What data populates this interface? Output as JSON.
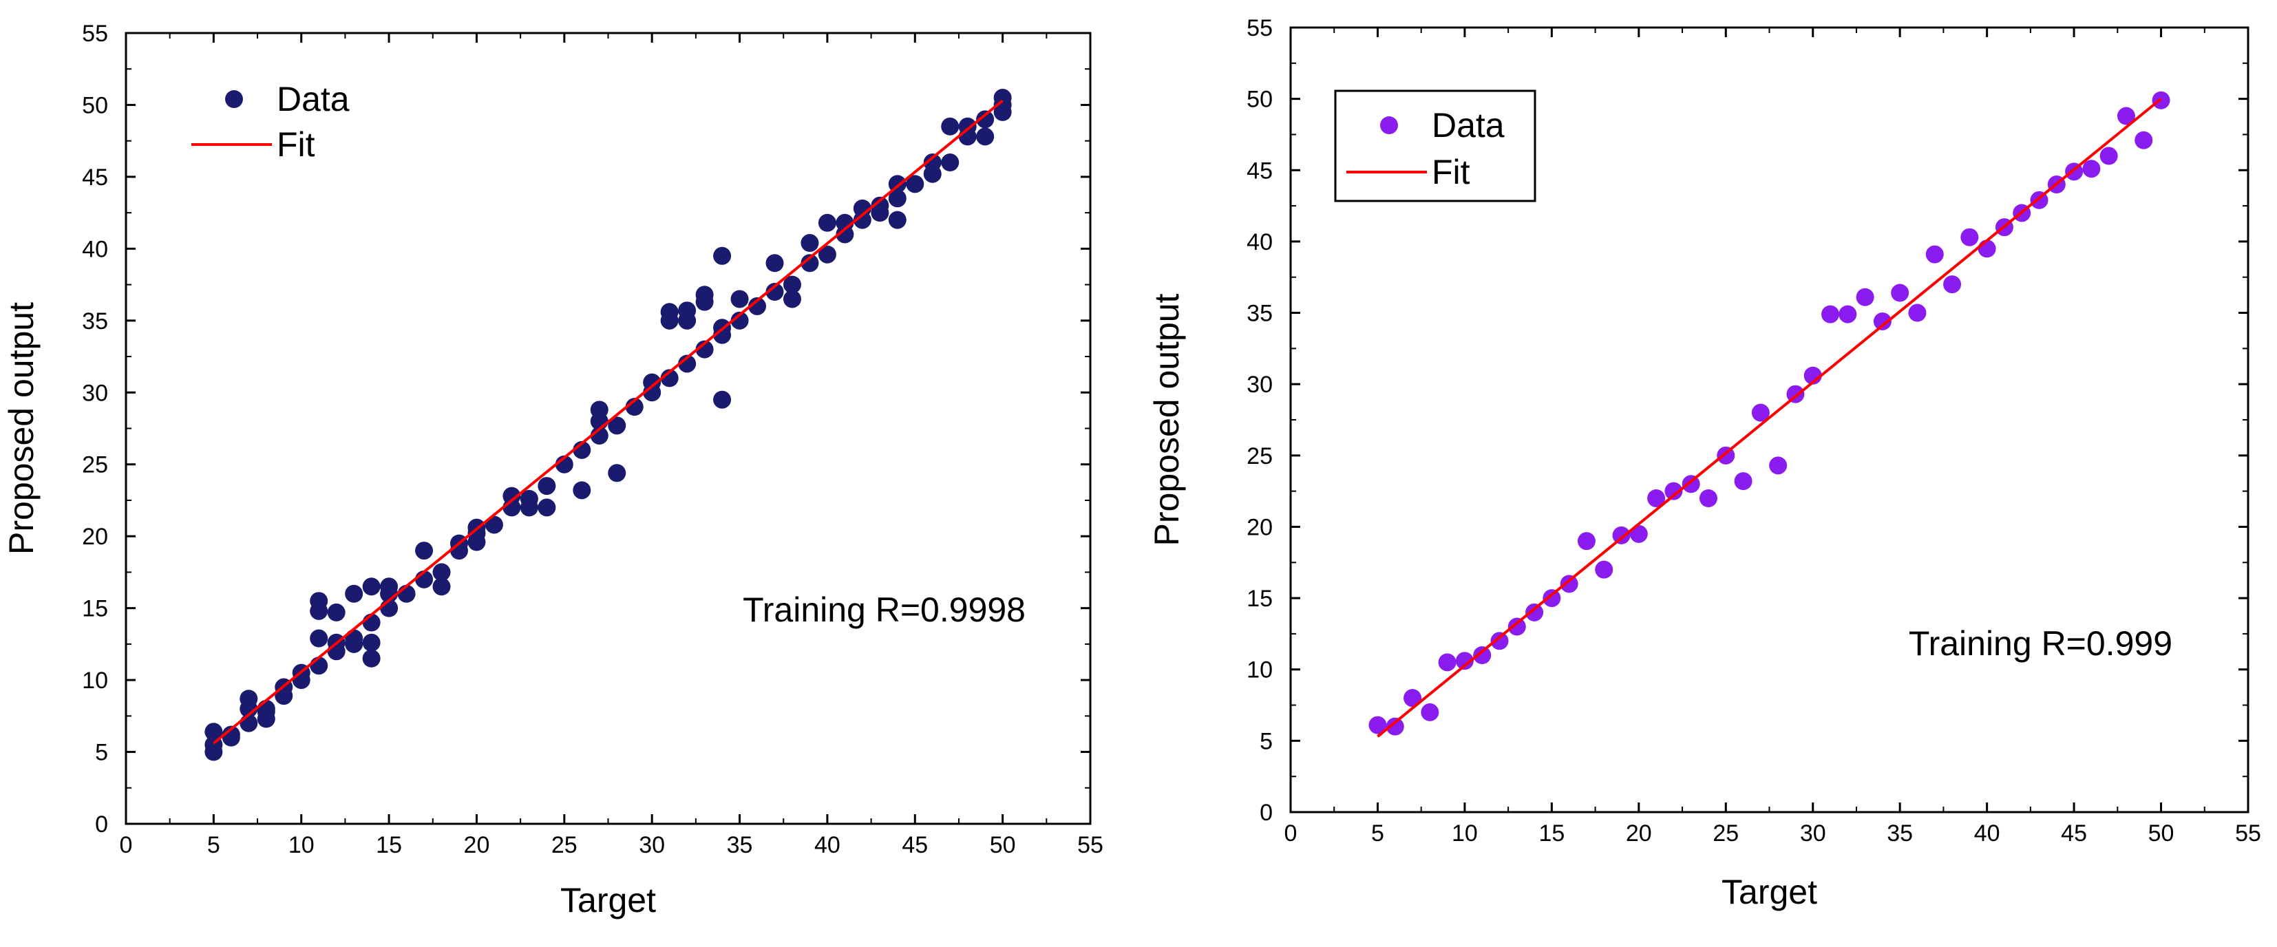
{
  "chart_data": [
    {
      "type": "scatter",
      "panel": "left",
      "xlabel": "Target",
      "ylabel": "Proposed output",
      "xlim": [
        0,
        55
      ],
      "ylim": [
        0,
        55
      ],
      "xticks": [
        0,
        5,
        10,
        15,
        20,
        25,
        30,
        35,
        40,
        45,
        50,
        55
      ],
      "yticks": [
        0,
        5,
        10,
        15,
        20,
        25,
        30,
        35,
        40,
        45,
        50,
        55
      ],
      "legend_position": "top-left",
      "legend_boxed": false,
      "annotation": "Training R=0.9998",
      "series": [
        {
          "name": "Data",
          "kind": "points",
          "color": "#1a1a6e",
          "points": [
            [
              5,
              5.0
            ],
            [
              5,
              5.5
            ],
            [
              5,
              6.4
            ],
            [
              6,
              6.0
            ],
            [
              6,
              6.2
            ],
            [
              7,
              7.0
            ],
            [
              7,
              8.0
            ],
            [
              7,
              8.7
            ],
            [
              8,
              7.3
            ],
            [
              8,
              7.8
            ],
            [
              8,
              8.0
            ],
            [
              9,
              8.9
            ],
            [
              9,
              9.5
            ],
            [
              10,
              10.0
            ],
            [
              10,
              10.5
            ],
            [
              11,
              11.0
            ],
            [
              11,
              12.9
            ],
            [
              11,
              14.8
            ],
            [
              11,
              15.5
            ],
            [
              12,
              12.0
            ],
            [
              12,
              12.6
            ],
            [
              12,
              14.7
            ],
            [
              13,
              12.5
            ],
            [
              13,
              12.9
            ],
            [
              13,
              16.0
            ],
            [
              14,
              11.5
            ],
            [
              14,
              12.6
            ],
            [
              14,
              14.0
            ],
            [
              14,
              16.5
            ],
            [
              15,
              15.0
            ],
            [
              15,
              16.0
            ],
            [
              15,
              16.5
            ],
            [
              16,
              16.0
            ],
            [
              17,
              17.0
            ],
            [
              17,
              19.0
            ],
            [
              18,
              16.5
            ],
            [
              18,
              17.5
            ],
            [
              19,
              19.0
            ],
            [
              19,
              19.5
            ],
            [
              20,
              19.6
            ],
            [
              20,
              20.2
            ],
            [
              20,
              20.6
            ],
            [
              21,
              20.8
            ],
            [
              22,
              22.0
            ],
            [
              22,
              22.8
            ],
            [
              23,
              22.0
            ],
            [
              23,
              22.6
            ],
            [
              24,
              22.0
            ],
            [
              24,
              23.5
            ],
            [
              25,
              25.0
            ],
            [
              26,
              23.2
            ],
            [
              26,
              26.0
            ],
            [
              27,
              27.0
            ],
            [
              27,
              28.0
            ],
            [
              27,
              28.8
            ],
            [
              28,
              24.4
            ],
            [
              28,
              27.7
            ],
            [
              29,
              29.0
            ],
            [
              30,
              30.0
            ],
            [
              30,
              30.7
            ],
            [
              31,
              31.0
            ],
            [
              31,
              35.0
            ],
            [
              31,
              35.6
            ],
            [
              32,
              32.0
            ],
            [
              32,
              35.0
            ],
            [
              32,
              35.7
            ],
            [
              33,
              33.0
            ],
            [
              33,
              36.3
            ],
            [
              33,
              36.8
            ],
            [
              34,
              29.5
            ],
            [
              34,
              34.0
            ],
            [
              34,
              34.5
            ],
            [
              34,
              39.5
            ],
            [
              35,
              35.0
            ],
            [
              35,
              36.5
            ],
            [
              36,
              36.0
            ],
            [
              37,
              37.0
            ],
            [
              37,
              39.0
            ],
            [
              38,
              36.5
            ],
            [
              38,
              37.5
            ],
            [
              39,
              39.0
            ],
            [
              39,
              40.4
            ],
            [
              40,
              39.6
            ],
            [
              40,
              41.8
            ],
            [
              41,
              41.0
            ],
            [
              41,
              41.8
            ],
            [
              42,
              42.0
            ],
            [
              42,
              42.8
            ],
            [
              43,
              42.5
            ],
            [
              43,
              43.0
            ],
            [
              44,
              42.0
            ],
            [
              44,
              43.5
            ],
            [
              44,
              44.5
            ],
            [
              45,
              44.5
            ],
            [
              46,
              45.2
            ],
            [
              46,
              46.0
            ],
            [
              47,
              46.0
            ],
            [
              47,
              48.5
            ],
            [
              48,
              47.8
            ],
            [
              48,
              48.5
            ],
            [
              49,
              47.8
            ],
            [
              49,
              49.0
            ],
            [
              50,
              49.5
            ],
            [
              50,
              50.0
            ],
            [
              50,
              50.5
            ]
          ]
        },
        {
          "name": "Fit",
          "kind": "line",
          "color": "#ff0000",
          "points": [
            [
              5,
              5.6
            ],
            [
              50,
              50.3
            ]
          ]
        }
      ]
    },
    {
      "type": "scatter",
      "panel": "right",
      "xlabel": "Target",
      "ylabel": "Proposed output",
      "xlim": [
        0,
        55
      ],
      "ylim": [
        0,
        55
      ],
      "xticks": [
        0,
        5,
        10,
        15,
        20,
        25,
        30,
        35,
        40,
        45,
        50,
        55
      ],
      "yticks": [
        0,
        5,
        10,
        15,
        20,
        25,
        30,
        35,
        40,
        45,
        50,
        55
      ],
      "legend_position": "top-left",
      "legend_boxed": true,
      "annotation": "Training R=0.999",
      "series": [
        {
          "name": "Data",
          "kind": "points",
          "color": "#8a1cf0",
          "points": [
            [
              5,
              6.1
            ],
            [
              6,
              6.0
            ],
            [
              7,
              8.0
            ],
            [
              8,
              7.0
            ],
            [
              9,
              10.5
            ],
            [
              10,
              10.6
            ],
            [
              11,
              11.0
            ],
            [
              12,
              12.0
            ],
            [
              13,
              13.0
            ],
            [
              14,
              14.0
            ],
            [
              15,
              15.0
            ],
            [
              16,
              16.0
            ],
            [
              17,
              19.0
            ],
            [
              18,
              17.0
            ],
            [
              19,
              19.4
            ],
            [
              20,
              19.5
            ],
            [
              21,
              22.0
            ],
            [
              22,
              22.5
            ],
            [
              23,
              23.0
            ],
            [
              24,
              22.0
            ],
            [
              25,
              25.0
            ],
            [
              26,
              23.2
            ],
            [
              27,
              28.0
            ],
            [
              28,
              24.3
            ],
            [
              29,
              29.3
            ],
            [
              30,
              30.6
            ],
            [
              31,
              34.9
            ],
            [
              32,
              34.9
            ],
            [
              33,
              36.1
            ],
            [
              34,
              34.4
            ],
            [
              35,
              36.4
            ],
            [
              36,
              35.0
            ],
            [
              37,
              39.1
            ],
            [
              38,
              37.0
            ],
            [
              39,
              40.3
            ],
            [
              40,
              39.5
            ],
            [
              41,
              41.0
            ],
            [
              42,
              42.0
            ],
            [
              43,
              42.9
            ],
            [
              44,
              44.0
            ],
            [
              45,
              44.9
            ],
            [
              46,
              45.1
            ],
            [
              47,
              46.0
            ],
            [
              48,
              48.8
            ],
            [
              49,
              47.1
            ],
            [
              50,
              49.9
            ]
          ]
        },
        {
          "name": "Fit",
          "kind": "line",
          "color": "#ff0000",
          "points": [
            [
              5,
              5.3
            ],
            [
              50,
              50.0
            ]
          ]
        }
      ]
    }
  ]
}
